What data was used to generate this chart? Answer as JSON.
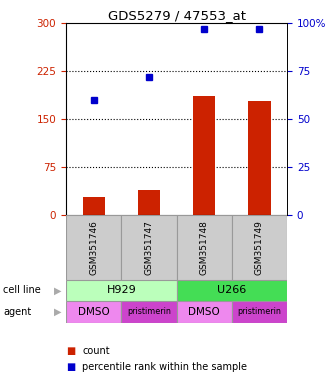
{
  "title": "GDS5279 / 47553_at",
  "samples": [
    "GSM351746",
    "GSM351747",
    "GSM351748",
    "GSM351749"
  ],
  "bar_values": [
    28,
    38,
    185,
    178
  ],
  "dot_values_pct": [
    60,
    72,
    97,
    97
  ],
  "bar_color": "#CC2200",
  "dot_color": "#0000CC",
  "ylim_left": [
    0,
    300
  ],
  "ylim_right": [
    0,
    100
  ],
  "yticks_left": [
    0,
    75,
    150,
    225,
    300
  ],
  "yticks_right": [
    0,
    25,
    50,
    75,
    100
  ],
  "ytick_labels_right": [
    "0",
    "25",
    "50",
    "75",
    "100%"
  ],
  "hlines": [
    75,
    150,
    225
  ],
  "agent_labels": [
    "DMSO",
    "pristimerin",
    "DMSO",
    "pristimerin"
  ],
  "cell_line_groups": [
    {
      "label": "H929",
      "start": 0,
      "end": 1,
      "color": "#BBFFBB"
    },
    {
      "label": "U266",
      "start": 2,
      "end": 3,
      "color": "#44DD55"
    }
  ],
  "agent_colors": [
    "#EE88EE",
    "#CC44CC",
    "#EE88EE",
    "#CC44CC"
  ],
  "sample_box_color": "#CCCCCC",
  "bg_color": "#FFFFFF"
}
